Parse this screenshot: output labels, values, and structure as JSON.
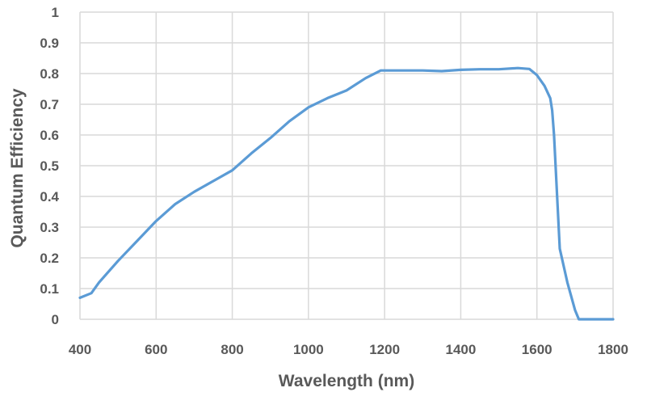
{
  "chart_data": {
    "type": "line",
    "title": "",
    "xlabel": "Wavelength (nm)",
    "ylabel": "Quantum Efficiency",
    "xlim": [
      400,
      1800
    ],
    "ylim": [
      0,
      1
    ],
    "x_ticks": [
      400,
      600,
      800,
      1000,
      1200,
      1400,
      1600,
      1800
    ],
    "x_tick_labels": [
      "400",
      "600",
      "800",
      "1000",
      "1200",
      "1400",
      "1600",
      "1800"
    ],
    "y_ticks": [
      0,
      0.1,
      0.2,
      0.3,
      0.4,
      0.5,
      0.6,
      0.7,
      0.8,
      0.9,
      1
    ],
    "y_tick_labels": [
      "0",
      "0.1",
      "0.2",
      "0.3",
      "0.4",
      "0.5",
      "0.6",
      "0.7",
      "0.8",
      "0.9",
      "1"
    ],
    "grid": true,
    "legend": "none",
    "series": [
      {
        "color": "#5b9bd5",
        "x": [
          400,
          430,
          450,
          500,
          550,
          600,
          650,
          700,
          750,
          800,
          850,
          900,
          950,
          1000,
          1050,
          1100,
          1150,
          1190,
          1250,
          1300,
          1350,
          1400,
          1450,
          1500,
          1550,
          1580,
          1600,
          1620,
          1635,
          1640,
          1645,
          1660,
          1680,
          1700,
          1710,
          1750,
          1800
        ],
        "y": [
          0.07,
          0.085,
          0.12,
          0.19,
          0.255,
          0.32,
          0.375,
          0.415,
          0.45,
          0.485,
          0.54,
          0.59,
          0.645,
          0.69,
          0.72,
          0.745,
          0.785,
          0.81,
          0.81,
          0.81,
          0.808,
          0.812,
          0.814,
          0.814,
          0.818,
          0.815,
          0.795,
          0.76,
          0.72,
          0.68,
          0.6,
          0.23,
          0.12,
          0.03,
          0.0,
          0.0,
          0.0
        ]
      }
    ]
  }
}
